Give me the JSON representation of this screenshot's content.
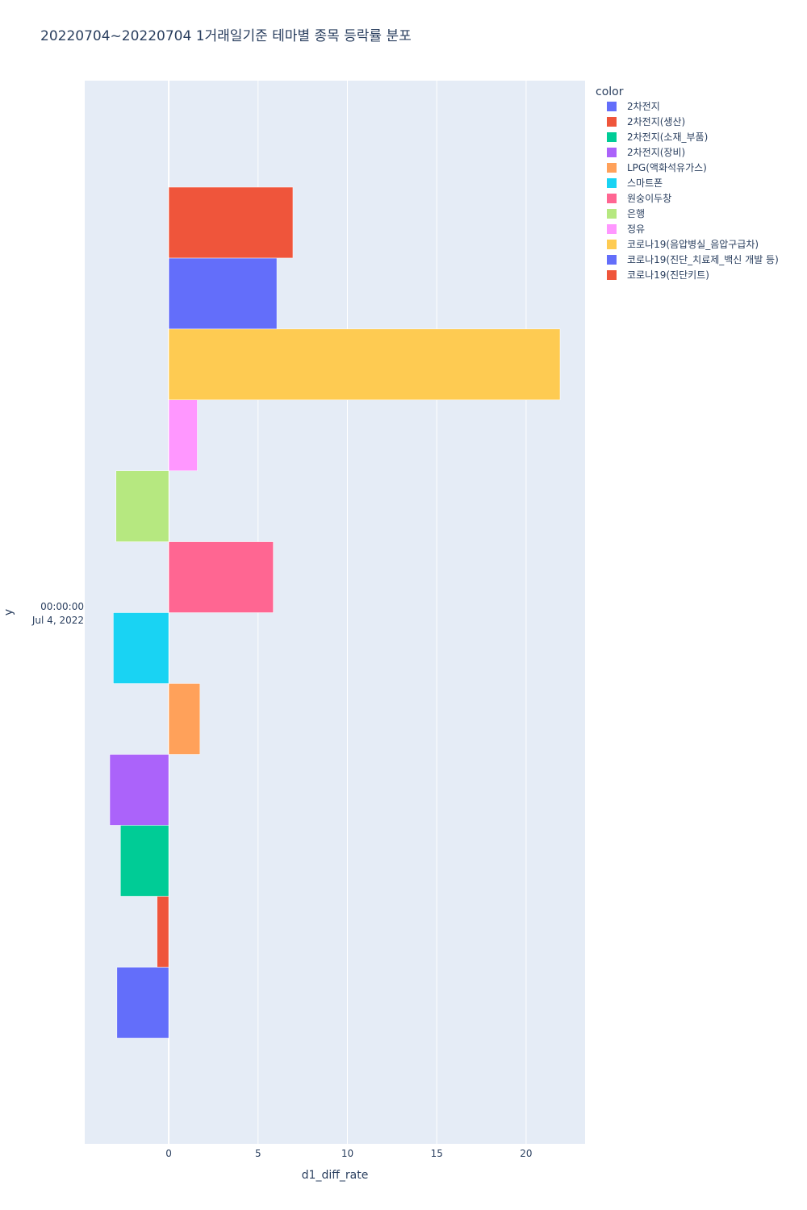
{
  "chart_data": {
    "type": "bar",
    "orientation": "horizontal",
    "title": "20220704~20220704 1거래일기준 테마별 종목 등락률 분포",
    "xlabel": "d1_diff_rate",
    "ylabel": "y",
    "y_category": [
      "00:00:00",
      "Jul 4, 2022"
    ],
    "xlim": [
      -4.7,
      23.3
    ],
    "x_ticks": [
      0,
      5,
      10,
      15,
      20
    ],
    "grid": true,
    "legend_title": "color",
    "legend_position": "right",
    "series": [
      {
        "name": "2차전지",
        "value": -2.9,
        "color": "#636efa"
      },
      {
        "name": "2차전지(생산)",
        "value": -0.65,
        "color": "#EF553B"
      },
      {
        "name": "2차전지(소재_부품)",
        "value": -2.7,
        "color": "#00cc96"
      },
      {
        "name": "2차전지(장비)",
        "value": -3.3,
        "color": "#ab63fa"
      },
      {
        "name": "LPG(액화석유가스)",
        "value": 1.75,
        "color": "#FFA15A"
      },
      {
        "name": "스마트폰",
        "value": -3.1,
        "color": "#19d3f3"
      },
      {
        "name": "원숭이두창",
        "value": 5.85,
        "color": "#FF6692"
      },
      {
        "name": "은행",
        "value": -2.95,
        "color": "#B6E880"
      },
      {
        "name": "정유",
        "value": 1.6,
        "color": "#FF97FF"
      },
      {
        "name": "코로나19(음압병실_음압구급차)",
        "value": 21.9,
        "color": "#FECB52"
      },
      {
        "name": "코로나19(진단_치료제_백신 개발 등)",
        "value": 6.05,
        "color": "#636efa"
      },
      {
        "name": "코로나19(진단키트)",
        "value": 6.95,
        "color": "#EF553B"
      }
    ]
  }
}
